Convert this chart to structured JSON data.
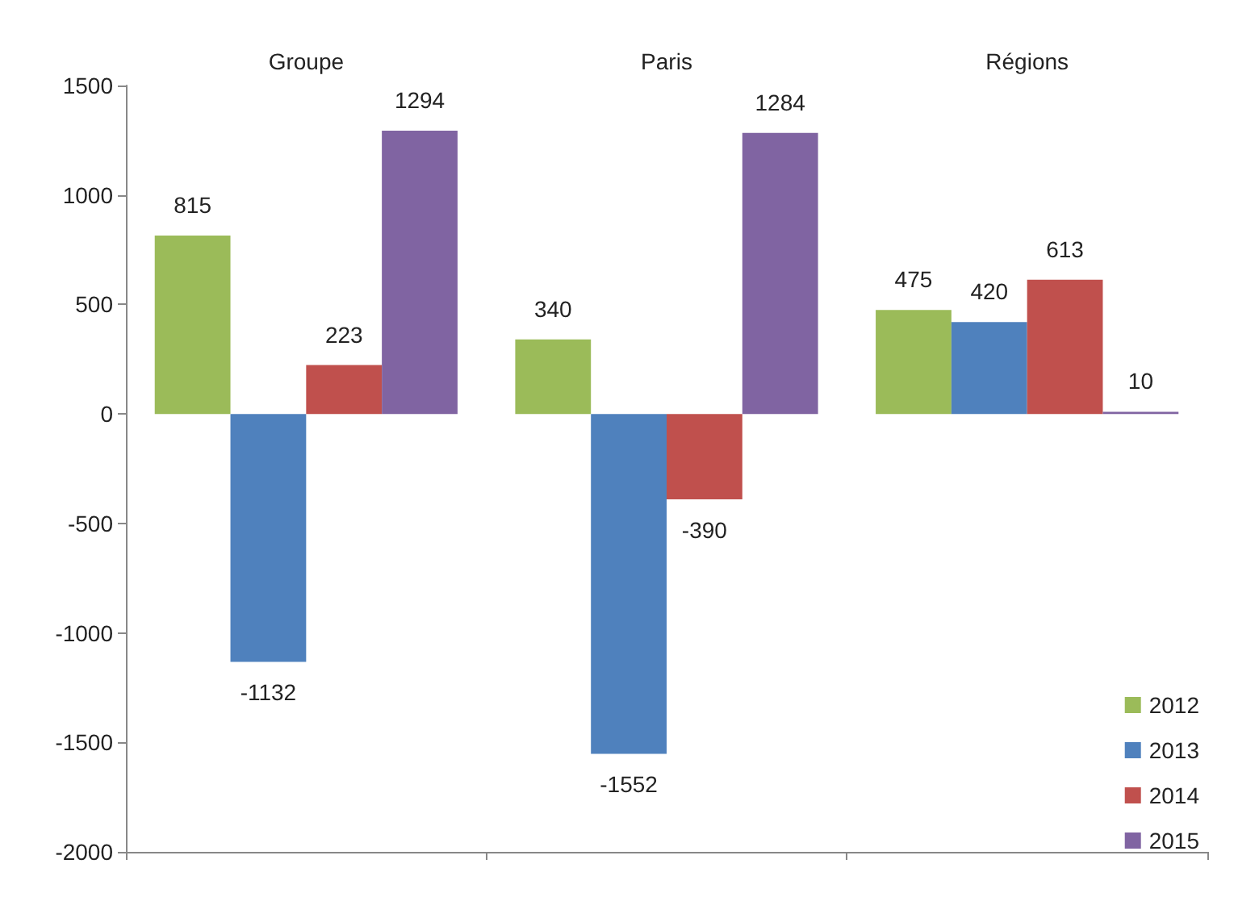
{
  "chart_data": {
    "type": "bar",
    "categories": [
      "Groupe",
      "Paris",
      "Régions"
    ],
    "series": [
      {
        "name": "2012",
        "color": "#9bbb59",
        "values": [
          815,
          340,
          475
        ]
      },
      {
        "name": "2013",
        "color": "#4f81bd",
        "values": [
          -1132,
          -1552,
          420
        ]
      },
      {
        "name": "2014",
        "color": "#c0504d",
        "values": [
          223,
          -390,
          613
        ]
      },
      {
        "name": "2015",
        "color": "#8064a2",
        "values": [
          1294,
          1284,
          10
        ]
      }
    ],
    "ylim": [
      -2000,
      1500
    ],
    "yticks": [
      -2000,
      -1500,
      -1000,
      -500,
      0,
      500,
      1000,
      1500
    ],
    "grid": false,
    "legend": "bottom right",
    "data_labels": true
  }
}
